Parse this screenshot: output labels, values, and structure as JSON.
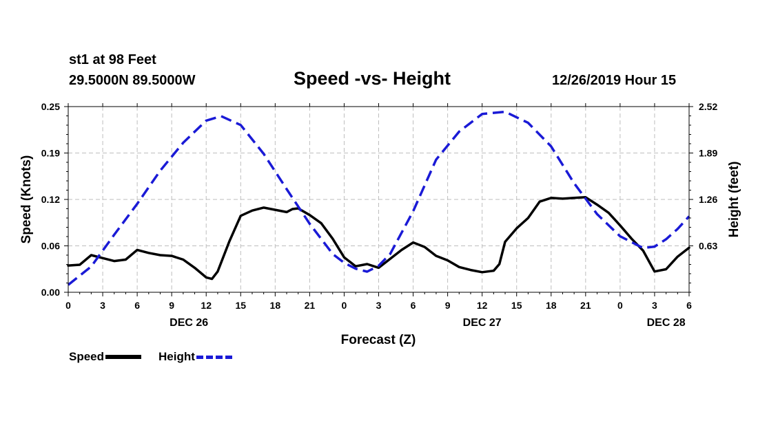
{
  "header": {
    "station": "st1 at 98 Feet",
    "coords": "29.5000N 89.5000W",
    "title": "Speed -vs- Height",
    "stamp": "12/26/2019 Hour 15"
  },
  "colors": {
    "speed": "#000000",
    "height": "#1a1ad6",
    "grid": "#bdbdbd"
  },
  "chart_data": {
    "type": "line",
    "title": "Speed -vs- Height",
    "xlabel": "Forecast (Z)",
    "ylabel": "Speed (Knots)",
    "y2label": "Height (feet)",
    "xlim": [
      0,
      54
    ],
    "ylim": [
      0,
      0.25
    ],
    "y2lim": [
      0,
      2.52
    ],
    "yticks": [
      "0.00",
      "0.06",
      "0.12",
      "0.19",
      "0.25"
    ],
    "ytick_values": [
      0,
      0.0625,
      0.125,
      0.1875,
      0.25
    ],
    "y2ticks": [
      "0.63",
      "1.26",
      "1.89",
      "2.52"
    ],
    "y2tick_values": [
      0.63,
      1.26,
      1.89,
      2.52
    ],
    "xticks": [
      0,
      3,
      6,
      9,
      12,
      15,
      18,
      21,
      24,
      27,
      30,
      33,
      36,
      39,
      42,
      45,
      48,
      51,
      54
    ],
    "xtick_labels": [
      "0",
      "3",
      "6",
      "9",
      "12",
      "15",
      "18",
      "21",
      "0",
      "3",
      "6",
      "9",
      "12",
      "15",
      "18",
      "21",
      "0",
      "3",
      "6"
    ],
    "day_labels": [
      {
        "x": 10.5,
        "label": "DEC 26"
      },
      {
        "x": 36.0,
        "label": "DEC 27"
      },
      {
        "x": 52.0,
        "label": "DEC 28"
      }
    ],
    "grid": true,
    "legend": "bottom-left",
    "series": [
      {
        "name": "Speed",
        "axis": "left",
        "style": "solid",
        "x": [
          0,
          1,
          2,
          3,
          4,
          5,
          6,
          7,
          8,
          9,
          10,
          11,
          12,
          12.5,
          13,
          14,
          15,
          16,
          17,
          18,
          19,
          19.5,
          20,
          21,
          22,
          23,
          24,
          25,
          26,
          27,
          28,
          29,
          30,
          31,
          32,
          33,
          34,
          35,
          36,
          37,
          37.5,
          38,
          39,
          40,
          41,
          42,
          43,
          44,
          45,
          46,
          47,
          48,
          49,
          50,
          51,
          52,
          53,
          54
        ],
        "values": [
          0.036,
          0.037,
          0.05,
          0.046,
          0.042,
          0.044,
          0.057,
          0.053,
          0.05,
          0.049,
          0.044,
          0.033,
          0.02,
          0.018,
          0.028,
          0.068,
          0.103,
          0.11,
          0.114,
          0.111,
          0.108,
          0.112,
          0.113,
          0.104,
          0.093,
          0.072,
          0.047,
          0.035,
          0.038,
          0.033,
          0.045,
          0.057,
          0.067,
          0.061,
          0.049,
          0.043,
          0.034,
          0.03,
          0.027,
          0.029,
          0.038,
          0.068,
          0.086,
          0.1,
          0.122,
          0.127,
          0.126,
          0.127,
          0.128,
          0.118,
          0.107,
          0.09,
          0.072,
          0.056,
          0.028,
          0.031,
          0.048,
          0.06
        ]
      },
      {
        "name": "Height",
        "axis": "right",
        "style": "dashed",
        "x": [
          0,
          2,
          4,
          6,
          8,
          10,
          12,
          13.3,
          15,
          17,
          19,
          21,
          23,
          24,
          25,
          26,
          27,
          28,
          30,
          32,
          34,
          36,
          38,
          40,
          42,
          44,
          46,
          48,
          50,
          51,
          52,
          53,
          54
        ],
        "values": [
          0.1,
          0.35,
          0.78,
          1.2,
          1.65,
          2.03,
          2.33,
          2.39,
          2.27,
          1.88,
          1.4,
          0.93,
          0.52,
          0.4,
          0.32,
          0.28,
          0.36,
          0.52,
          1.1,
          1.8,
          2.18,
          2.42,
          2.45,
          2.3,
          1.98,
          1.48,
          1.06,
          0.76,
          0.6,
          0.62,
          0.72,
          0.86,
          1.03
        ]
      }
    ]
  },
  "legend": {
    "speed_label": "Speed",
    "height_label": "Height"
  }
}
